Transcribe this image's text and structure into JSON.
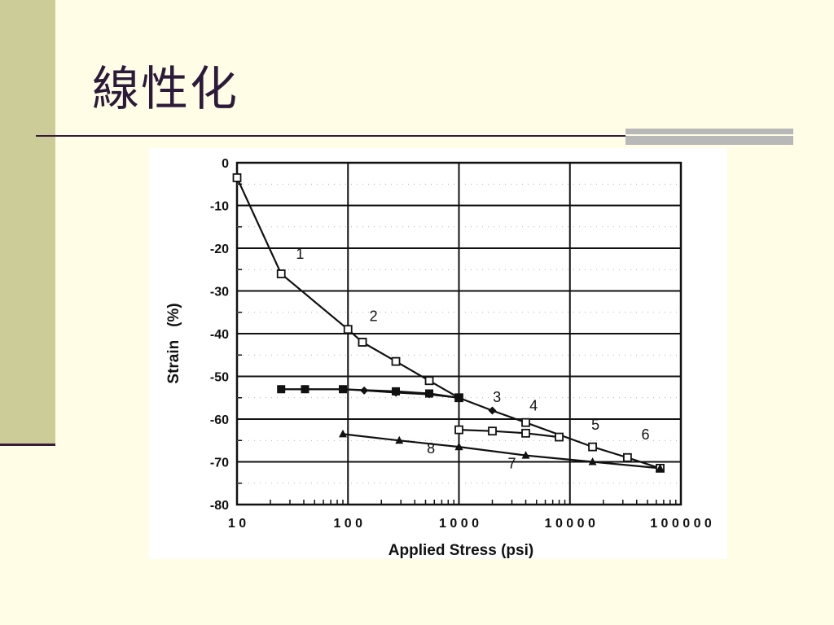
{
  "slide": {
    "title": "線性化"
  },
  "chart_data": {
    "type": "line",
    "xlabel": "Applied Stress (psi)",
    "ylabel": "Strain   (%)",
    "xscale": "log",
    "xlim": [
      10,
      100000
    ],
    "ylim": [
      -80,
      0
    ],
    "xticks": [
      "1 0",
      "1 0 0",
      "1 0 0 0",
      "1 0 0 0 0",
      "1 0 0 0 0 0"
    ],
    "xtick_values": [
      10,
      100,
      1000,
      10000,
      100000
    ],
    "yticks": [
      "0",
      "-10",
      "-20",
      "-30",
      "-40",
      "-50",
      "-60",
      "-70",
      "-80"
    ],
    "ytick_values": [
      0,
      -10,
      -20,
      -30,
      -40,
      -50,
      -60,
      -70,
      -80
    ],
    "grid": true,
    "series": [
      {
        "name": "1",
        "marker": "square-hollow",
        "label_at": [
          37,
          -22.5
        ],
        "x": [
          10,
          25,
          100,
          135
        ],
        "y": [
          -3.5,
          -26,
          -39,
          -42
        ]
      },
      {
        "name": "2",
        "marker": "square-hollow",
        "label_at": [
          170,
          -37
        ],
        "x": [
          135,
          270,
          540,
          1000
        ],
        "y": [
          -42,
          -46.5,
          -51,
          -55
        ]
      },
      {
        "name": "3",
        "marker": "diamond",
        "label_at": [
          2200,
          -56
        ],
        "x": [
          25,
          41,
          90,
          140,
          270,
          540,
          1000,
          2000,
          4000
        ],
        "y": [
          -53,
          -53,
          -53,
          -53.3,
          -53.8,
          -54.2,
          -55,
          -58,
          -60.8
        ]
      },
      {
        "name": "4",
        "marker": "square-filled",
        "label_at": [
          4700,
          -58
        ],
        "x": [
          25,
          41,
          90,
          270,
          540,
          1000
        ],
        "y": [
          -53,
          -53,
          -53,
          -53.5,
          -54,
          -55
        ]
      },
      {
        "name": "5",
        "marker": "square-hollow",
        "label_at": [
          17000,
          -62.5
        ],
        "x": [
          1000,
          2000,
          4000,
          8000
        ],
        "y": [
          -62.5,
          -62.8,
          -63.3,
          -64.2
        ]
      },
      {
        "name": "6",
        "marker": "square-hollow",
        "label_at": [
          48000,
          -64.8
        ],
        "x": [
          4000,
          16000,
          33000,
          65000
        ],
        "y": [
          -60.8,
          -66.5,
          -69,
          -71.5
        ]
      },
      {
        "name": "7",
        "marker": "triangle",
        "label_at": [
          3000,
          -71.5
        ],
        "x": [
          1000,
          4000,
          16000,
          65000
        ],
        "y": [
          -66.5,
          -68.5,
          -70,
          -71.5
        ]
      },
      {
        "name": "8",
        "marker": "triangle",
        "label_at": [
          560,
          -68
        ],
        "x": [
          90,
          290,
          1000
        ],
        "y": [
          -63.5,
          -65,
          -66.5
        ]
      }
    ]
  }
}
